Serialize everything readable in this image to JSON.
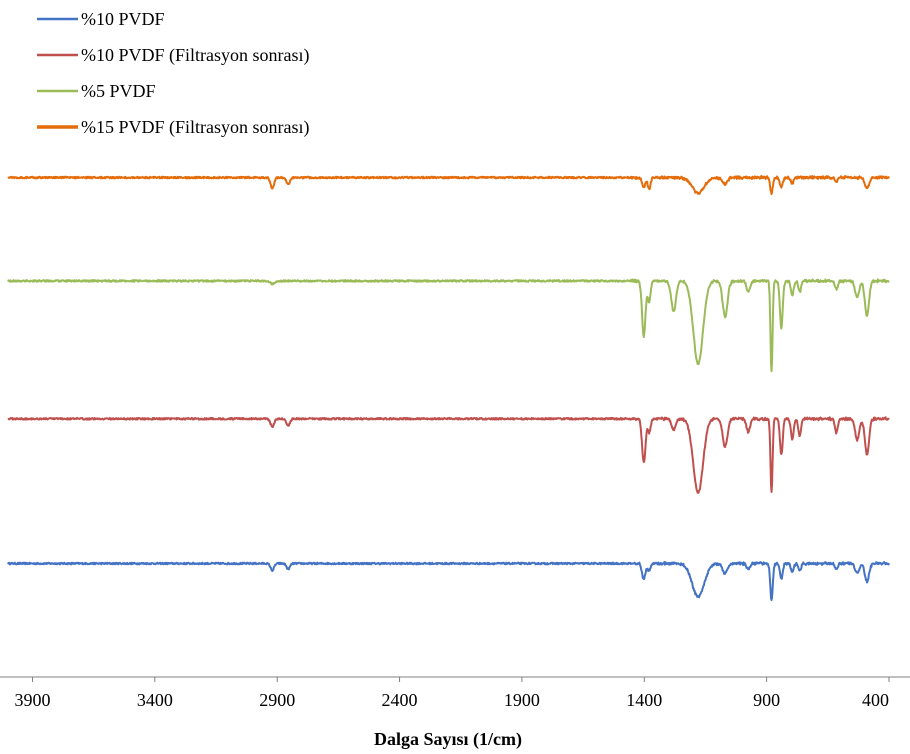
{
  "chart_data": {
    "type": "line",
    "title": "",
    "xlabel": "Dalga Sayısı (1/cm)",
    "ylabel": "",
    "xlim": [
      4000,
      400
    ],
    "x_reversed": true,
    "x_ticks": [
      3900,
      3400,
      2900,
      2400,
      1900,
      1400,
      900,
      400
    ],
    "y_axis_visible": false,
    "grid": false,
    "legend_position": "top-left",
    "series": [
      {
        "name": "%10 PVDF",
        "color": "#4472C4",
        "baseline": 0.0,
        "features": [
          {
            "x": 2920,
            "depth": 0.5,
            "width": 10
          },
          {
            "x": 2855,
            "depth": 0.4,
            "width": 10
          },
          {
            "x": 1402,
            "depth": 1.1,
            "width": 10
          },
          {
            "x": 1380,
            "depth": 0.5,
            "width": 8
          },
          {
            "x": 1180,
            "depth": 2.4,
            "width": 35
          },
          {
            "x": 1070,
            "depth": 0.7,
            "width": 14
          },
          {
            "x": 975,
            "depth": 0.4,
            "width": 10
          },
          {
            "x": 880,
            "depth": 2.7,
            "width": 7
          },
          {
            "x": 840,
            "depth": 1.1,
            "width": 8
          },
          {
            "x": 795,
            "depth": 0.6,
            "width": 8
          },
          {
            "x": 765,
            "depth": 0.5,
            "width": 8
          },
          {
            "x": 615,
            "depth": 0.4,
            "width": 8
          },
          {
            "x": 530,
            "depth": 0.7,
            "width": 12
          },
          {
            "x": 490,
            "depth": 1.3,
            "width": 12
          }
        ]
      },
      {
        "name": "%10 PVDF (Filtrasyon sonrası)",
        "color": "#C0504D",
        "baseline": 10.5,
        "features": [
          {
            "x": 2920,
            "depth": 0.6,
            "width": 10
          },
          {
            "x": 2855,
            "depth": 0.5,
            "width": 10
          },
          {
            "x": 1402,
            "depth": 3.2,
            "width": 10
          },
          {
            "x": 1380,
            "depth": 1.0,
            "width": 8
          },
          {
            "x": 1280,
            "depth": 0.8,
            "width": 12
          },
          {
            "x": 1180,
            "depth": 5.4,
            "width": 28
          },
          {
            "x": 1070,
            "depth": 2.0,
            "width": 14
          },
          {
            "x": 975,
            "depth": 1.0,
            "width": 10
          },
          {
            "x": 880,
            "depth": 5.3,
            "width": 6
          },
          {
            "x": 840,
            "depth": 2.6,
            "width": 8
          },
          {
            "x": 795,
            "depth": 1.5,
            "width": 8
          },
          {
            "x": 765,
            "depth": 1.2,
            "width": 8
          },
          {
            "x": 615,
            "depth": 1.0,
            "width": 8
          },
          {
            "x": 530,
            "depth": 1.5,
            "width": 12
          },
          {
            "x": 490,
            "depth": 2.6,
            "width": 12
          }
        ]
      },
      {
        "name": "%5 PVDF",
        "color": "#9BBB59",
        "baseline": 20.5,
        "features": [
          {
            "x": 2920,
            "depth": 0.2,
            "width": 12
          },
          {
            "x": 1402,
            "depth": 4.0,
            "width": 10
          },
          {
            "x": 1380,
            "depth": 1.5,
            "width": 8
          },
          {
            "x": 1280,
            "depth": 2.2,
            "width": 14
          },
          {
            "x": 1180,
            "depth": 6.0,
            "width": 28
          },
          {
            "x": 1070,
            "depth": 2.6,
            "width": 14
          },
          {
            "x": 975,
            "depth": 0.8,
            "width": 10
          },
          {
            "x": 880,
            "depth": 6.6,
            "width": 6
          },
          {
            "x": 840,
            "depth": 3.4,
            "width": 8
          },
          {
            "x": 795,
            "depth": 1.0,
            "width": 8
          },
          {
            "x": 765,
            "depth": 0.8,
            "width": 8
          },
          {
            "x": 615,
            "depth": 0.6,
            "width": 8
          },
          {
            "x": 530,
            "depth": 1.2,
            "width": 12
          },
          {
            "x": 490,
            "depth": 2.5,
            "width": 12
          }
        ]
      },
      {
        "name": "%15 PVDF (Filtrasyon sonrası)",
        "color": "#E46C0A",
        "baseline": 28.0,
        "features": [
          {
            "x": 2920,
            "depth": 0.8,
            "width": 10
          },
          {
            "x": 2855,
            "depth": 0.5,
            "width": 10
          },
          {
            "x": 1402,
            "depth": 0.7,
            "width": 10
          },
          {
            "x": 1380,
            "depth": 0.8,
            "width": 8
          },
          {
            "x": 1180,
            "depth": 1.1,
            "width": 35
          },
          {
            "x": 1070,
            "depth": 0.5,
            "width": 14
          },
          {
            "x": 880,
            "depth": 1.2,
            "width": 7
          },
          {
            "x": 840,
            "depth": 0.7,
            "width": 8
          },
          {
            "x": 795,
            "depth": 0.4,
            "width": 8
          },
          {
            "x": 615,
            "depth": 0.3,
            "width": 8
          },
          {
            "x": 490,
            "depth": 0.8,
            "width": 12
          }
        ]
      }
    ]
  }
}
